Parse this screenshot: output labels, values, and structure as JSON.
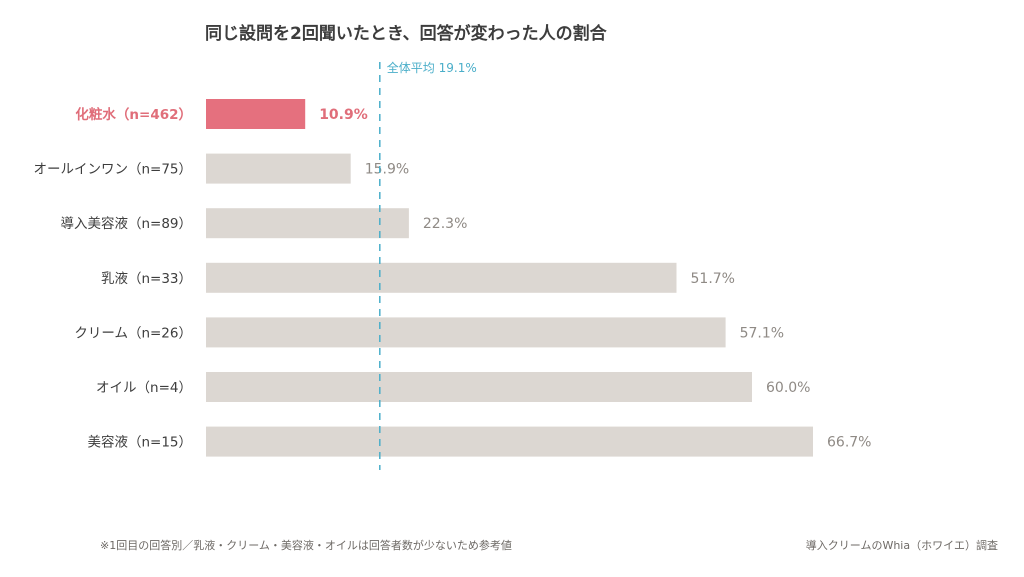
{
  "chart_data": {
    "type": "bar",
    "orientation": "horizontal",
    "title": "同じ設問を2回聞いたとき、回答が変わった人の割合",
    "categories": [
      "化粧水（n=462）",
      "オールインワン（n=75）",
      "導入美容液（n=89）",
      "乳液（n=33）",
      "クリーム（n=26）",
      "オイル（n=4）",
      "美容液（n=15）"
    ],
    "values": [
      10.9,
      15.9,
      22.3,
      51.7,
      57.1,
      60.0,
      66.7
    ],
    "value_labels": [
      "10.9%",
      "15.9%",
      "22.3%",
      "51.7%",
      "57.1%",
      "60.0%",
      "66.7%"
    ],
    "highlight_index": 0,
    "reference_line": {
      "value": 19.1,
      "label": "全体平均 19.1%"
    },
    "xlim": [
      0,
      100
    ],
    "grid": false,
    "colors": {
      "highlight_bar": "#e5707e",
      "bar": "#dcd7d2",
      "highlight_text": "#e06e7a",
      "value_text": "#8f8a85",
      "reference_line": "#4aaec9"
    }
  },
  "footnote": "※1回目の回答別／乳液・クリーム・美容液・オイルは回答者数が少ないため参考値",
  "source": "導入クリームのWhia（ホワイエ）調査"
}
